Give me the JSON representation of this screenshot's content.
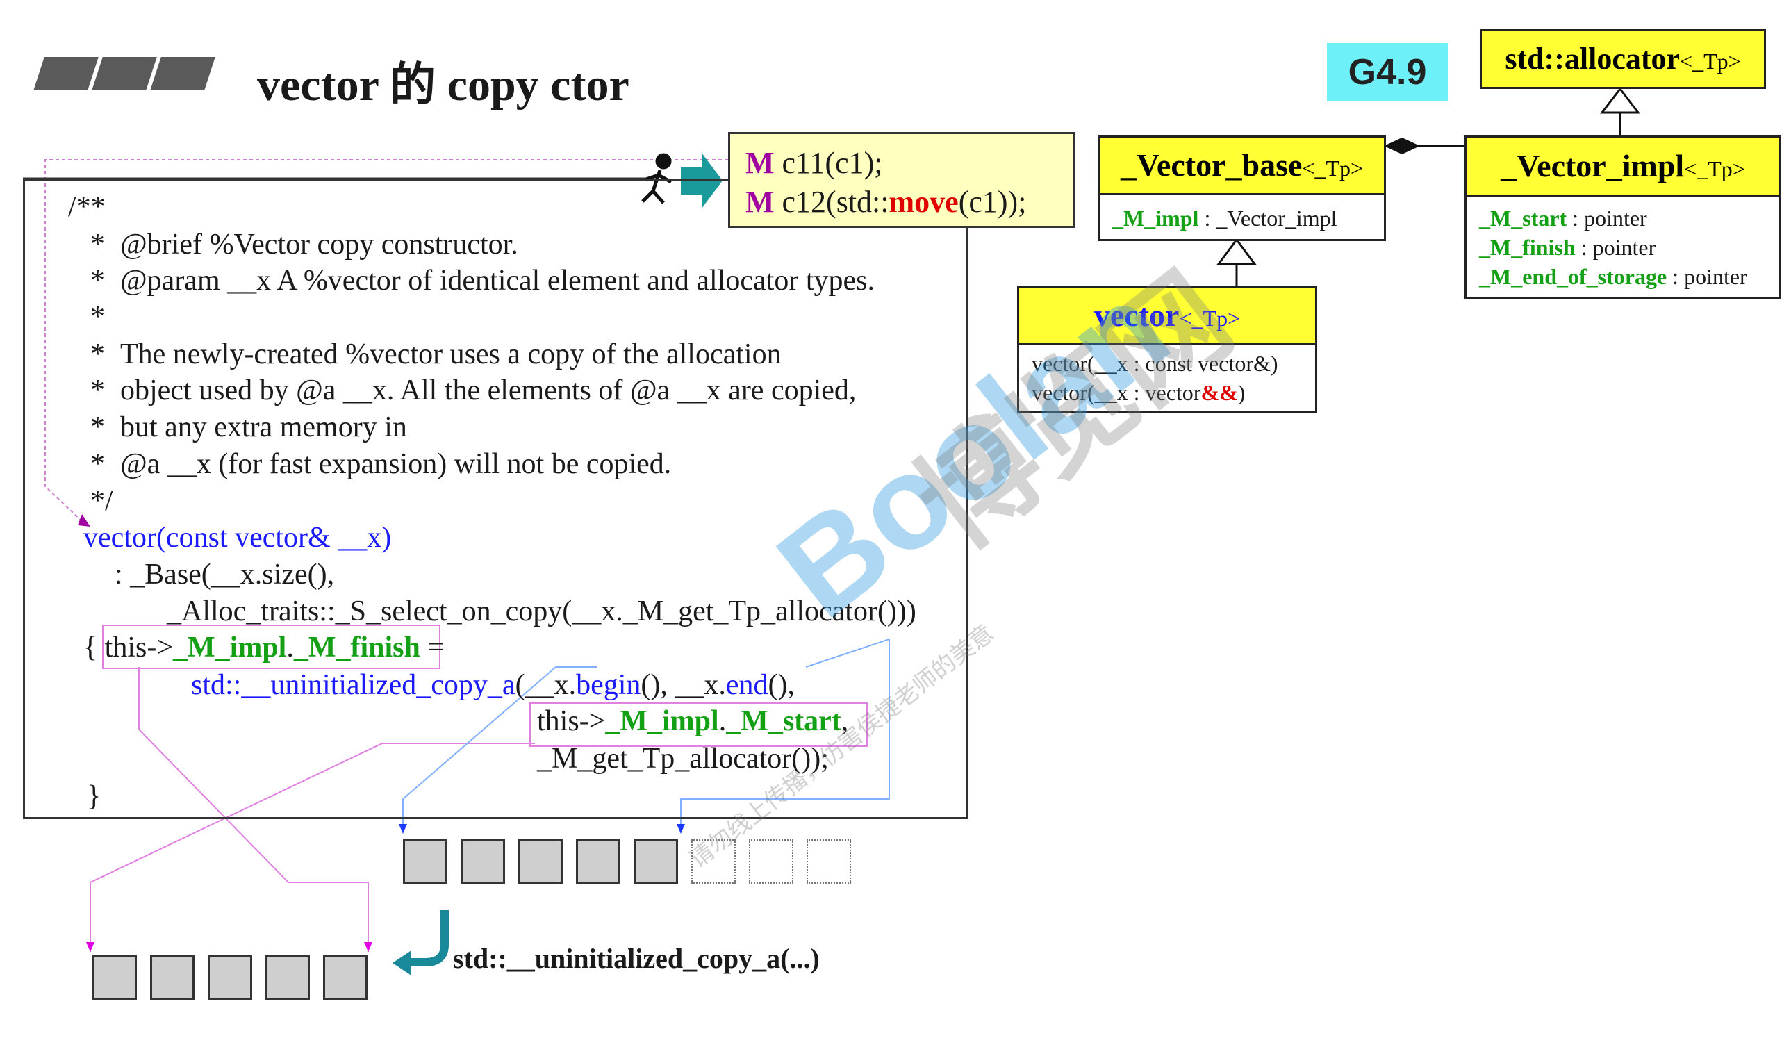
{
  "title": "vector 的 copy ctor",
  "version_badge": "G4.9",
  "example": {
    "line1_prefix": "M",
    "line1_text": " c11(c1);",
    "line2_prefix": "M",
    "line2_a": " c12(std::",
    "line2_move": "move",
    "line2_b": "(c1));"
  },
  "code": {
    "l1": "/**",
    "l2": "@brief  %Vector copy constructor.",
    "l3": "@param  __x  A %vector of identical element and allocator types.",
    "l4": "",
    "l5": "The newly-created %vector uses a copy of the allocation",
    "l6": "object used by @a __x.  All the elements of @a __x are copied,",
    "l7": "but any extra memory in",
    "l8": "@a __x (for fast expansion) will not be copied.",
    "l9": "*/",
    "star": "*",
    "sig": "vector(const vector& __x)",
    "base1": ": _Base(__x.size(),",
    "base2": "_Alloc_traits::_S_select_on_copy(__x._M_get_Tp_allocator()))",
    "brace_open": "{",
    "this_arrow": "this->",
    "m_impl": "_M_impl",
    "dot": ".",
    "m_finish": "_M_finish",
    "assign": " =",
    "uc_call": "std::__uninitialized_copy_a",
    "uc_args_a": "(__x.",
    "begin": "begin",
    "uc_args_b": "(), __x.",
    "end": "end",
    "uc_args_c": "(),",
    "this_arrow2": "this->",
    "m_impl2": "_M_impl",
    "dot2": ".",
    "m_start": "_M_start",
    "comma": ",",
    "alloc_line": "_M_get_Tp_allocator());",
    "brace_close": "}"
  },
  "uml": {
    "allocator": {
      "name": "std::allocator",
      "tp": "<_Tp>"
    },
    "impl": {
      "name": "_Vector_impl",
      "tp": "<_Tp>",
      "members": [
        {
          "name": "_M_start",
          "type": " : pointer"
        },
        {
          "name": "_M_finish",
          "type": " : pointer"
        },
        {
          "name": "_M_end_of_storage",
          "type": " : pointer"
        }
      ]
    },
    "base": {
      "name": "_Vector_base",
      "tp": "<_Tp>",
      "member_name": "_M_impl",
      "member_type": " : _Vector_impl"
    },
    "vector": {
      "name": "vector",
      "tp": "<_Tp>",
      "ctor1": "vector(__x : const vector&)",
      "ctor2_a": "vector(__x : vector",
      "ctor2_rr": "&&",
      "ctor2_b": ")"
    }
  },
  "memory": {
    "source_filled": 5,
    "source_empty": 3,
    "dest_filled": 5
  },
  "uninitialized_label": "std::__uninitialized_copy_a(...)",
  "watermarks": {
    "blue": "Boolan",
    "gray": "博览网",
    "small": "请勿线上传播，仿害侯捷老师的美意"
  }
}
